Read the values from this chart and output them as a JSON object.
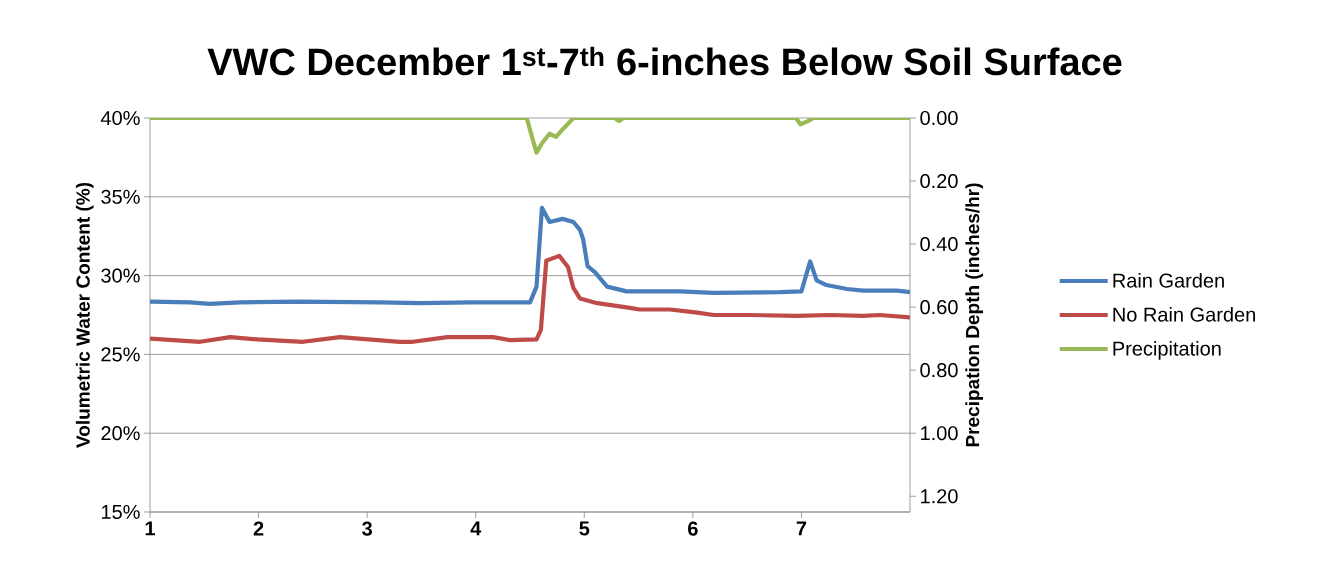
{
  "chart_data": {
    "type": "line",
    "title": "VWC December 1$^{st}$-7$^{th}$ 6-inches Below Soil Surface",
    "ylabel": "Volumetric Water Content (%)",
    "y2label": "Precipation Depth (inches/hr)",
    "xlim": [
      1,
      8
    ],
    "xticks": [
      1,
      2,
      3,
      4,
      5,
      6,
      7
    ],
    "ylim": [
      15,
      40
    ],
    "yticks": [
      {
        "value": 15,
        "label": "15%"
      },
      {
        "value": 20,
        "label": "20%"
      },
      {
        "value": 25,
        "label": "25%"
      },
      {
        "value": 30,
        "label": "30%"
      },
      {
        "value": 35,
        "label": "35%"
      },
      {
        "value": 40,
        "label": "40%"
      }
    ],
    "y2lim": [
      1.25,
      0
    ],
    "y2ticks": [
      {
        "value": 0,
        "label": "0.00"
      },
      {
        "value": 0.2,
        "label": "0.20"
      },
      {
        "value": 0.4,
        "label": "0.40"
      },
      {
        "value": 0.6,
        "label": "0.60"
      },
      {
        "value": 0.8,
        "label": "0.80"
      },
      {
        "value": 1.0,
        "label": "1.00"
      },
      {
        "value": 1.2,
        "label": "1.20"
      }
    ],
    "grid": "y",
    "legend": "right",
    "line_style": "solid",
    "series": [
      {
        "name": "Rain Garden",
        "color": "#4a7ebb",
        "x": [
          1.0,
          1.37,
          1.55,
          1.83,
          2.38,
          3.12,
          3.49,
          3.95,
          4.5,
          4.56,
          4.61,
          4.68,
          4.8,
          4.9,
          4.96,
          4.99,
          5.03,
          5.1,
          5.21,
          5.39,
          5.88,
          6.19,
          6.8,
          7.0,
          7.08,
          7.14,
          7.23,
          7.42,
          7.57,
          7.88,
          8.0
        ],
        "values": [
          28.35,
          28.3,
          28.2,
          28.3,
          28.35,
          28.3,
          28.25,
          28.3,
          28.3,
          29.3,
          34.3,
          33.4,
          33.6,
          33.4,
          32.9,
          32.3,
          30.6,
          30.2,
          29.3,
          29.0,
          29.0,
          28.9,
          28.95,
          29.0,
          30.9,
          29.7,
          29.4,
          29.15,
          29.05,
          29.05,
          28.95
        ]
      },
      {
        "name": "No Rain Garden",
        "color": "#be4b48",
        "x": [
          1.0,
          1.46,
          1.74,
          1.99,
          2.41,
          2.75,
          3.3,
          3.42,
          3.74,
          4.16,
          4.32,
          4.56,
          4.6,
          4.65,
          4.77,
          4.85,
          4.9,
          4.96,
          5.12,
          5.42,
          5.51,
          5.79,
          6.04,
          6.19,
          6.5,
          6.96,
          7.26,
          7.57,
          7.72,
          8.0
        ],
        "values": [
          26.0,
          25.8,
          26.1,
          25.95,
          25.8,
          26.1,
          25.8,
          25.8,
          26.1,
          26.1,
          25.9,
          25.95,
          26.55,
          30.95,
          31.25,
          30.55,
          29.2,
          28.55,
          28.25,
          27.95,
          27.85,
          27.85,
          27.65,
          27.5,
          27.5,
          27.45,
          27.5,
          27.45,
          27.5,
          27.35
        ]
      },
      {
        "name": "Precipitation",
        "color": "#98b954",
        "axis": "y2",
        "x": [
          1.0,
          4.47,
          4.51,
          4.56,
          4.61,
          4.68,
          4.74,
          4.79,
          4.9,
          5.28,
          5.32,
          5.36,
          6.95,
          6.99,
          7.06,
          7.11,
          8.0
        ],
        "values": [
          0,
          0,
          0.05,
          0.11,
          0.08,
          0.05,
          0.06,
          0.04,
          0,
          0,
          0.01,
          0,
          0,
          0.02,
          0.01,
          0,
          0
        ]
      }
    ]
  }
}
